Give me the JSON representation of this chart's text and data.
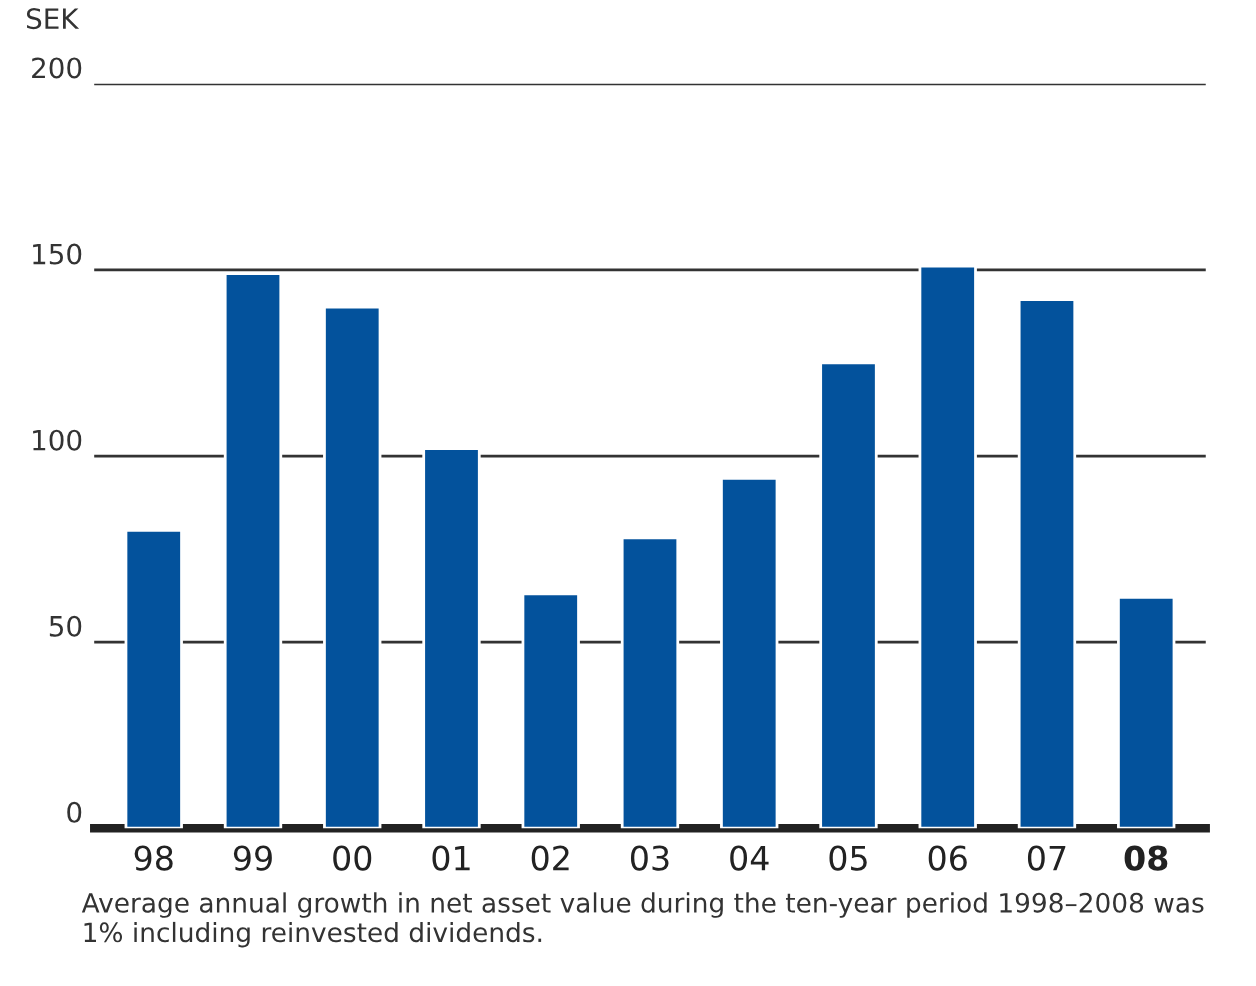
{
  "chart_data": {
    "type": "bar",
    "ylabel": "SEK",
    "categories": [
      "98",
      "99",
      "00",
      "01",
      "02",
      "03",
      "04",
      "05",
      "06",
      "07",
      "08"
    ],
    "values": [
      80,
      149,
      140,
      102,
      63,
      78,
      94,
      125,
      151,
      142,
      62
    ],
    "color": "#03529c",
    "ylim": [
      0,
      200
    ],
    "yticks": [
      0,
      50,
      100,
      150,
      200
    ],
    "grid": "y",
    "annotations": [
      "Average annual growth in net asset value during the ten-year period 1998–2008 was 1% including reinvested dividends."
    ]
  }
}
